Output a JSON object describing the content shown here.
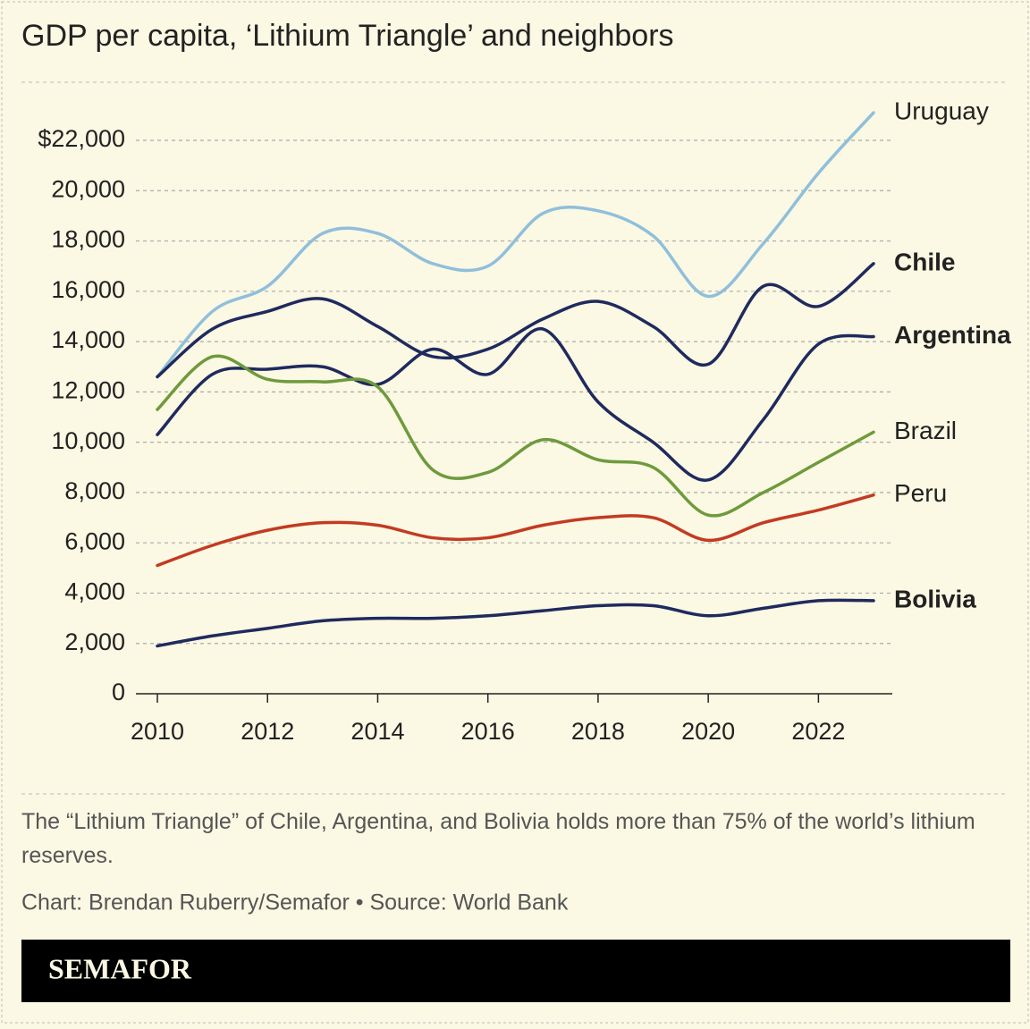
{
  "chart_data": {
    "type": "line",
    "title": "GDP per capita, ‘Lithium Triangle’ and neighbors",
    "note": "The “Lithium Triangle” of Chile, Argentina, and Bolivia holds more than 75% of the world’s lithium reserves.",
    "credit": "Chart: Brendan Ruberry/Semafor • Source: World Bank",
    "brand": "SEMAFOR",
    "x": [
      2010,
      2011,
      2012,
      2013,
      2014,
      2015,
      2016,
      2017,
      2018,
      2019,
      2020,
      2021,
      2022,
      2023
    ],
    "xlim": [
      2010,
      2023
    ],
    "xticks": [
      2010,
      2012,
      2014,
      2016,
      2018,
      2020,
      2022
    ],
    "ylim": [
      0,
      22000
    ],
    "yticks": [
      0,
      {
        "value": 2000,
        "label": "2,000"
      },
      {
        "value": 4000,
        "label": "4,000"
      },
      {
        "value": 6000,
        "label": "6,000"
      },
      {
        "value": 8000,
        "label": "8,000"
      },
      {
        "value": 10000,
        "label": "10,000"
      },
      {
        "value": 12000,
        "label": "12,000"
      },
      {
        "value": 14000,
        "label": "14,000"
      },
      {
        "value": 16000,
        "label": "16,000"
      },
      {
        "value": 18000,
        "label": "18,000"
      },
      {
        "value": 20000,
        "label": "20,000"
      },
      {
        "value": 22000,
        "label": "$22,000"
      }
    ],
    "grid": true,
    "series": [
      {
        "name": "Uruguay",
        "color": "#8fbfdb",
        "label_weight": "normal",
        "values": [
          12600,
          15200,
          16200,
          18300,
          18300,
          17100,
          17000,
          19100,
          19200,
          18200,
          15800,
          17900,
          20700,
          23100
        ]
      },
      {
        "name": "Chile",
        "color": "#1f2a5e",
        "label_weight": "bold",
        "values": [
          12600,
          14500,
          15200,
          15700,
          14600,
          13400,
          13700,
          14900,
          15600,
          14600,
          13100,
          16200,
          15400,
          17100
        ]
      },
      {
        "name": "Argentina",
        "color": "#1f2a5e",
        "label_weight": "bold",
        "values": [
          10300,
          12700,
          12900,
          13000,
          12300,
          13700,
          12700,
          14500,
          11600,
          10000,
          8500,
          10900,
          13900,
          14200
        ]
      },
      {
        "name": "Brazil",
        "color": "#6e9a3c",
        "label_weight": "normal",
        "values": [
          11300,
          13400,
          12500,
          12400,
          12200,
          8900,
          8800,
          10100,
          9300,
          9000,
          7100,
          8000,
          9200,
          10400
        ]
      },
      {
        "name": "Peru",
        "color": "#c23b22",
        "label_weight": "normal",
        "values": [
          5100,
          5900,
          6500,
          6800,
          6700,
          6200,
          6200,
          6700,
          7000,
          7000,
          6100,
          6800,
          7300,
          7900
        ]
      },
      {
        "name": "Bolivia",
        "color": "#1f2a5e",
        "label_weight": "bold",
        "values": [
          1900,
          2300,
          2600,
          2900,
          3000,
          3000,
          3100,
          3300,
          3500,
          3500,
          3100,
          3400,
          3700,
          3700
        ]
      }
    ]
  }
}
